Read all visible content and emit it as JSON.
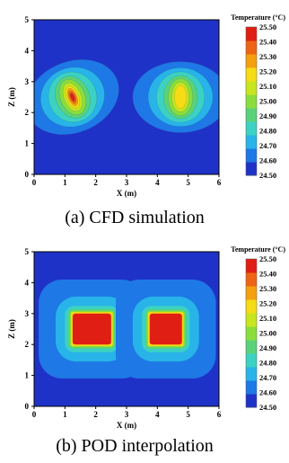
{
  "chart_data": [
    {
      "type": "heatmap",
      "caption": "(a) CFD simulation",
      "xlabel": "X (m)",
      "ylabel": "Z (m)",
      "xlim": [
        0,
        6
      ],
      "ylim": [
        0,
        5
      ],
      "xticks": [
        "0",
        "1",
        "2",
        "3",
        "4",
        "5",
        "6"
      ],
      "yticks": [
        "0",
        "1",
        "2",
        "3",
        "4",
        "5"
      ],
      "colorbar": {
        "title": "Temperature (°C)",
        "ticks": [
          "25.50",
          "25.40",
          "25.30",
          "25.20",
          "25.10",
          "25.00",
          "24.90",
          "24.80",
          "24.70",
          "24.60",
          "24.50"
        ],
        "min": 24.5,
        "max": 25.5
      },
      "hotspots": [
        {
          "x": 1.25,
          "z": 2.5,
          "peak_temperature": 25.5
        },
        {
          "x": 4.75,
          "z": 2.5,
          "peak_temperature": 25.2
        }
      ],
      "background_temperature": 24.55
    },
    {
      "type": "heatmap",
      "caption": "(b) POD interpolation",
      "xlabel": "X (m)",
      "ylabel": "Z (m)",
      "xlim": [
        0,
        6
      ],
      "ylim": [
        0,
        5
      ],
      "xticks": [
        "0",
        "1",
        "2",
        "3",
        "4",
        "5",
        "6"
      ],
      "yticks": [
        "0",
        "1",
        "2",
        "3",
        "4",
        "5"
      ],
      "colorbar": {
        "title": "Temperature (°C)",
        "ticks": [
          "25.50",
          "25.40",
          "25.30",
          "25.20",
          "25.10",
          "25.00",
          "24.90",
          "24.80",
          "24.70",
          "24.60",
          "24.50"
        ],
        "min": 24.5,
        "max": 25.5
      },
      "hot_regions": [
        {
          "x_range": [
            1.25,
            2.5
          ],
          "z_range": [
            2.0,
            3.0
          ],
          "temperature": 25.5
        },
        {
          "x_range": [
            3.75,
            4.8
          ],
          "z_range": [
            2.0,
            3.0
          ],
          "temperature": 25.5
        }
      ],
      "background_temperature": 24.55
    }
  ],
  "colors": {
    "scale": [
      "#1f32c8",
      "#1e78e6",
      "#28b4e8",
      "#3cd2c3",
      "#5ad27a",
      "#8ade3c",
      "#c8e61e",
      "#f5dc14",
      "#f5a00f",
      "#ee6414",
      "#e01e14"
    ]
  }
}
